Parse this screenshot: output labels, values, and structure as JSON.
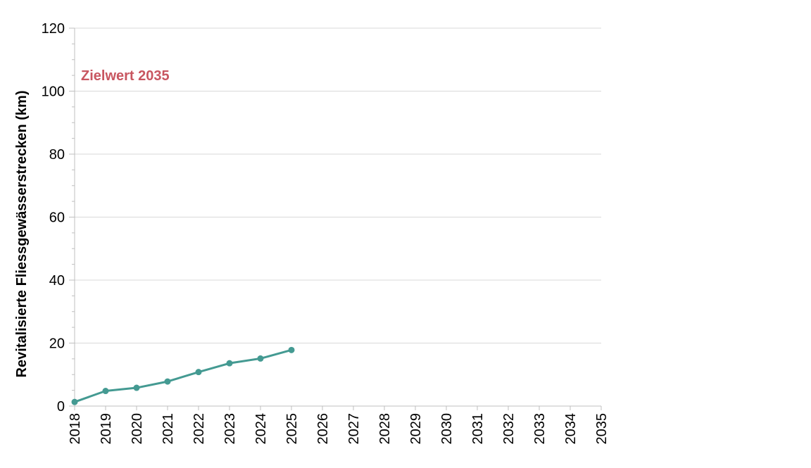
{
  "chart_data": {
    "type": "line",
    "title": "",
    "xlabel": "",
    "ylabel": "Revitalisierte Fliessgewässerstrecken (km)",
    "categories": [
      "2018",
      "2019",
      "2020",
      "2021",
      "2022",
      "2023",
      "2024",
      "2025",
      "2026",
      "2027",
      "2028",
      "2029",
      "2030",
      "2031",
      "2032",
      "2033",
      "2034",
      "2035"
    ],
    "series": [
      {
        "values": [
          1.3,
          4.8,
          5.8,
          7.8,
          10.8,
          13.6,
          15.1,
          17.8,
          null,
          null,
          null,
          null,
          null,
          null,
          null,
          null,
          null,
          null
        ],
        "color": "#449a92"
      }
    ],
    "ylim": [
      0,
      120
    ],
    "yticks": [
      0,
      20,
      40,
      60,
      80,
      100,
      120
    ],
    "grid": true,
    "legend": "none",
    "annotations": [
      {
        "text": "Zielwert 2035",
        "x": "2018",
        "y": 105,
        "color": "#c85660"
      }
    ]
  }
}
